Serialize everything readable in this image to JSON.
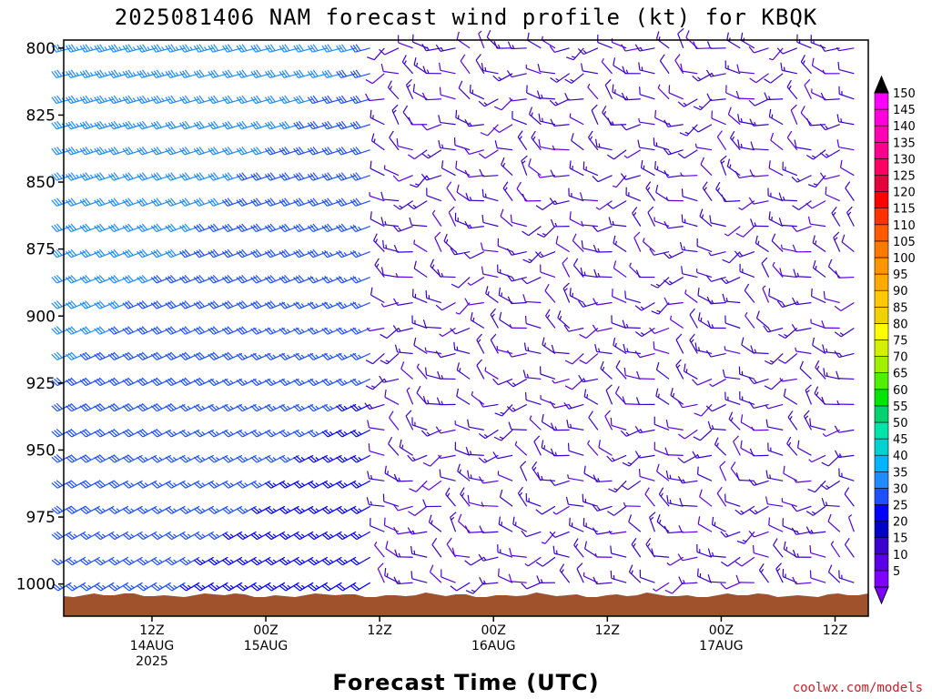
{
  "chart_data": {
    "type": "wind-barb",
    "title": "2025081406 NAM forecast wind profile (kt) for KBQK",
    "xlabel": "Forecast Time (UTC)",
    "ylabel": "",
    "credit": "coolwx.com/models",
    "ylim": [
      1012,
      797
    ],
    "yticks": [
      800,
      825,
      850,
      875,
      900,
      925,
      950,
      975,
      1000
    ],
    "time_range_hours": [
      -3.3,
      81.5
    ],
    "xticks": [
      {
        "hour": 6,
        "line1": "12Z",
        "line2": "14AUG",
        "line3": "2025"
      },
      {
        "hour": 18,
        "line1": "00Z",
        "line2": "15AUG",
        "line3": ""
      },
      {
        "hour": 30,
        "line1": "12Z",
        "line2": "",
        "line3": ""
      },
      {
        "hour": 42,
        "line1": "00Z",
        "line2": "16AUG",
        "line3": ""
      },
      {
        "hour": 54,
        "line1": "12Z",
        "line2": "",
        "line3": ""
      },
      {
        "hour": 66,
        "line1": "00Z",
        "line2": "17AUG",
        "line3": ""
      },
      {
        "hour": 78,
        "line1": "12Z",
        "line2": "",
        "line3": ""
      }
    ],
    "colorbar": {
      "levels": [
        5,
        10,
        15,
        20,
        25,
        30,
        35,
        40,
        45,
        50,
        55,
        60,
        65,
        70,
        75,
        80,
        85,
        90,
        95,
        100,
        105,
        110,
        115,
        120,
        125,
        130,
        135,
        140,
        145,
        150
      ],
      "colors": [
        "#7f00ff",
        "#5a00e6",
        "#3a00d0",
        "#0000c8",
        "#0000ff",
        "#1e50ff",
        "#1e8cff",
        "#00b4ff",
        "#00d2d2",
        "#00e6aa",
        "#00d26e",
        "#00e600",
        "#50f000",
        "#a0f000",
        "#d2f000",
        "#ffff00",
        "#f0d200",
        "#ffc800",
        "#ffaa00",
        "#ff9600",
        "#ff7800",
        "#ff5a00",
        "#ff3200",
        "#ff0000",
        "#e6003c",
        "#ff0064",
        "#ff008c",
        "#ff00b4",
        "#ff00dc",
        "#ff00ff"
      ]
    },
    "terrain_color": "#a0522d",
    "wind_field": {
      "description_units": "knots, direction degrees from",
      "segments": [
        {
          "hours": [
            -3,
            29
          ],
          "speed_kt": [
            35,
            30
          ],
          "dir_deg": 255
        },
        {
          "hours": [
            30,
            81
          ],
          "speed_kt": [
            10,
            10
          ],
          "dir_deg": 280
        }
      ]
    }
  }
}
